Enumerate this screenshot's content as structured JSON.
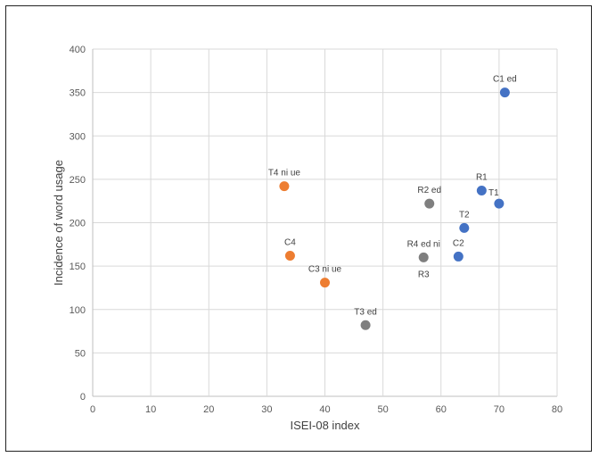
{
  "chart_data": {
    "type": "scatter",
    "title": "",
    "xlabel": "ISEI-08 index",
    "ylabel": "Incidence of word usage",
    "xlim": [
      0,
      80
    ],
    "ylim": [
      0,
      400
    ],
    "xticks": [
      0,
      10,
      20,
      30,
      40,
      50,
      60,
      70,
      80
    ],
    "yticks": [
      0,
      50,
      100,
      150,
      200,
      250,
      300,
      350,
      400
    ],
    "grid": true,
    "legend": "none",
    "colors": {
      "blue": "#4472C4",
      "orange": "#ED7D31",
      "gray": "#7F7F7F"
    },
    "points": [
      {
        "label": "C1 ed",
        "x": 71,
        "y": 350,
        "color": "blue",
        "label_pos": "above"
      },
      {
        "label": "R1",
        "x": 67,
        "y": 237,
        "color": "blue",
        "label_pos": "above"
      },
      {
        "label": "T1",
        "x": 70,
        "y": 222,
        "color": "blue",
        "label_pos": "above-left"
      },
      {
        "label": "T2",
        "x": 64,
        "y": 194,
        "color": "blue",
        "label_pos": "above"
      },
      {
        "label": "C2",
        "x": 63,
        "y": 161,
        "color": "blue",
        "label_pos": "above"
      },
      {
        "label": "T4 ni ue",
        "x": 33,
        "y": 242,
        "color": "orange",
        "label_pos": "above"
      },
      {
        "label": "C4",
        "x": 34,
        "y": 162,
        "color": "orange",
        "label_pos": "above"
      },
      {
        "label": "C3 ni ue",
        "x": 40,
        "y": 131,
        "color": "orange",
        "label_pos": "above"
      },
      {
        "label": "R2 ed",
        "x": 58,
        "y": 222,
        "color": "gray",
        "label_pos": "above"
      },
      {
        "label": "R4 ed ni",
        "x": 57,
        "y": 160,
        "color": "gray",
        "label_pos": "above"
      },
      {
        "label": "R3",
        "x": 57,
        "y": 160,
        "color": "gray",
        "label_pos": "below"
      },
      {
        "label": "T3 ed",
        "x": 47,
        "y": 82,
        "color": "gray",
        "label_pos": "above"
      }
    ]
  }
}
